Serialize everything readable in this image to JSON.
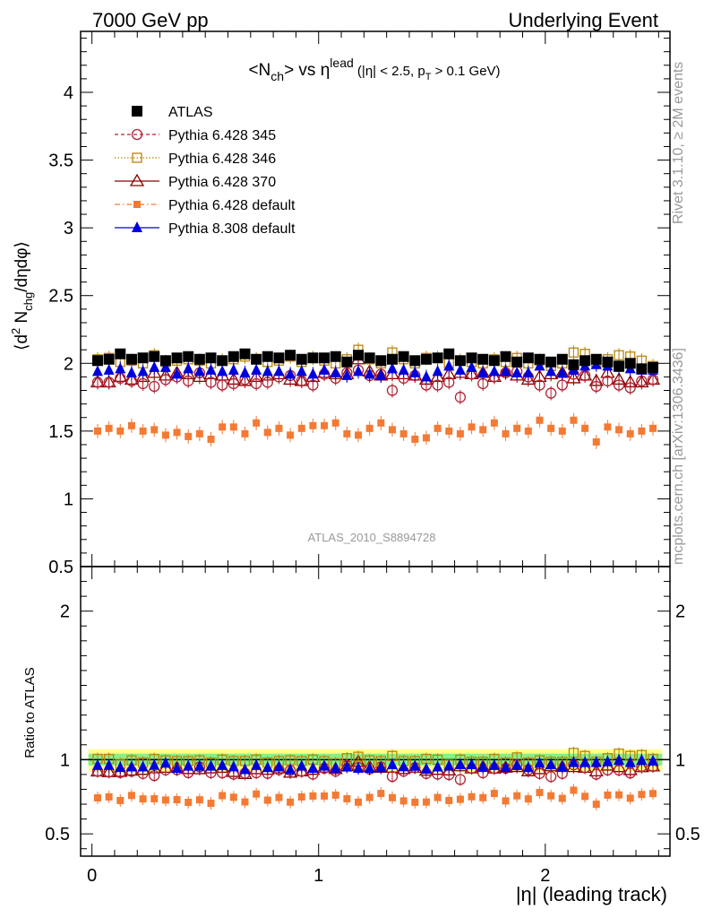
{
  "header": {
    "left": "7000 GeV pp",
    "right": "Underlying Event"
  },
  "side_labels": {
    "rivet": "Rivet 3.1.10, ≥ 2M events",
    "mcplots": "mcplots.cern.ch [arXiv:1306.3436]"
  },
  "chart_data": [
    {
      "type": "scatter",
      "title": "<N_ch> vs η^lead (|η| < 2.5, p_T > 0.1 GeV)",
      "ylabel": "⟨d² N_chg/dηdφ⟩",
      "xlabel": "|η| (leading track)",
      "analysis_label": "ATLAS_2010_S8894728",
      "xlim": [
        -0.05,
        2.55
      ],
      "ylim": [
        0.5,
        4.45
      ],
      "yticks": [
        0.5,
        1,
        1.5,
        2,
        2.5,
        3,
        3.5,
        4
      ],
      "ytick_labels": [
        "0.5",
        "1",
        "1.5",
        "2",
        "2.5",
        "3",
        "3.5",
        "4"
      ],
      "xticks": [
        0,
        1,
        2
      ],
      "xtick_labels": [
        "0",
        "1",
        "2"
      ],
      "legend_position": "top-left",
      "x": [
        0.025,
        0.075,
        0.125,
        0.175,
        0.225,
        0.275,
        0.325,
        0.375,
        0.425,
        0.475,
        0.525,
        0.575,
        0.625,
        0.675,
        0.725,
        0.775,
        0.825,
        0.875,
        0.925,
        0.975,
        1.025,
        1.075,
        1.125,
        1.175,
        1.225,
        1.275,
        1.325,
        1.375,
        1.425,
        1.475,
        1.525,
        1.575,
        1.625,
        1.675,
        1.725,
        1.775,
        1.825,
        1.875,
        1.925,
        1.975,
        2.025,
        2.075,
        2.125,
        2.175,
        2.225,
        2.275,
        2.325,
        2.375,
        2.425,
        2.475
      ],
      "series": [
        {
          "name": "ATLAS",
          "color": "#000000",
          "marker": "square-filled",
          "values": [
            2.02,
            2.03,
            2.07,
            2.03,
            2.04,
            2.05,
            2.02,
            2.04,
            2.05,
            2.03,
            2.04,
            2.02,
            2.05,
            2.07,
            2.03,
            2.05,
            2.04,
            2.06,
            2.03,
            2.04,
            2.04,
            2.05,
            2.01,
            2.06,
            2.04,
            2.02,
            2.03,
            2.05,
            2.02,
            2.03,
            2.04,
            2.07,
            2.02,
            2.04,
            2.03,
            2.02,
            2.05,
            2.01,
            2.04,
            2.03,
            2.01,
            2.03,
            1.99,
            2.02,
            2.03,
            2.01,
            1.98,
            2.0,
            1.96,
            1.97
          ]
        },
        {
          "name": "Pythia 6.428 345",
          "color": "#b22234",
          "marker": "circle-open",
          "line": "dashed",
          "values": [
            1.86,
            1.86,
            1.89,
            1.87,
            1.85,
            1.83,
            1.88,
            1.9,
            1.87,
            1.93,
            1.86,
            1.84,
            1.85,
            1.88,
            1.85,
            1.86,
            1.9,
            1.91,
            1.87,
            1.84,
            1.92,
            1.89,
            1.93,
            1.95,
            1.91,
            1.92,
            1.8,
            1.89,
            1.91,
            1.84,
            1.84,
            1.86,
            1.75,
            1.92,
            1.85,
            1.9,
            1.93,
            1.94,
            1.9,
            1.84,
            1.78,
            1.84,
            1.92,
            1.91,
            1.83,
            1.87,
            1.84,
            1.82,
            1.87,
            1.88
          ]
        },
        {
          "name": "Pythia 6.428 346",
          "color": "#b8860b",
          "marker": "square-open",
          "line": "dotted",
          "values": [
            2.03,
            2.04,
            2.01,
            2.02,
            2.0,
            2.06,
            2.01,
            2.02,
            2.03,
            2.02,
            2.0,
            2.02,
            2.03,
            2.05,
            2.03,
            2.01,
            2.02,
            2.05,
            2.01,
            2.04,
            2.02,
            2.0,
            2.03,
            2.1,
            2.03,
            2.0,
            2.08,
            2.03,
            2.0,
            2.04,
            2.04,
            2.0,
            2.02,
            2.01,
            2.0,
            2.03,
            2.01,
            2.04,
            2.0,
            2.02,
            1.98,
            2.0,
            2.08,
            2.07,
            2.0,
            2.03,
            2.06,
            2.05,
            2.02,
            1.98
          ]
        },
        {
          "name": "Pythia 6.428 370",
          "color": "#8b0000",
          "marker": "triangle-open",
          "line": "solid",
          "values": [
            1.86,
            1.86,
            1.9,
            1.88,
            1.9,
            1.93,
            1.91,
            1.93,
            1.92,
            1.9,
            1.92,
            1.91,
            1.88,
            1.87,
            1.9,
            1.91,
            1.92,
            1.88,
            1.87,
            1.9,
            1.93,
            1.92,
            1.92,
            2.03,
            1.94,
            1.91,
            1.92,
            1.92,
            1.91,
            1.88,
            1.9,
            1.92,
            1.93,
            1.92,
            1.93,
            1.9,
            1.94,
            1.91,
            1.88,
            1.9,
            1.92,
            1.93,
            1.89,
            1.91,
            1.87,
            1.93,
            1.88,
            1.86,
            1.86,
            1.88
          ]
        },
        {
          "name": "Pythia 6.428 default",
          "color": "#f47a33",
          "marker": "square-filled-small",
          "line": "dashdot",
          "values": [
            1.5,
            1.52,
            1.5,
            1.54,
            1.5,
            1.51,
            1.47,
            1.49,
            1.46,
            1.48,
            1.44,
            1.53,
            1.53,
            1.48,
            1.56,
            1.49,
            1.52,
            1.47,
            1.52,
            1.54,
            1.54,
            1.56,
            1.48,
            1.47,
            1.52,
            1.56,
            1.51,
            1.48,
            1.44,
            1.45,
            1.52,
            1.5,
            1.48,
            1.53,
            1.51,
            1.56,
            1.48,
            1.52,
            1.5,
            1.58,
            1.52,
            1.5,
            1.58,
            1.52,
            1.42,
            1.53,
            1.51,
            1.48,
            1.5,
            1.52
          ]
        },
        {
          "name": "Pythia 8.308 default",
          "color": "#0000dd",
          "marker": "triangle-filled",
          "line": "solid",
          "values": [
            1.94,
            1.95,
            1.96,
            1.93,
            1.94,
            1.97,
            1.97,
            1.92,
            1.96,
            1.94,
            1.95,
            1.94,
            1.95,
            1.93,
            1.95,
            1.94,
            1.94,
            1.92,
            1.94,
            1.92,
            1.95,
            1.93,
            1.91,
            1.94,
            1.92,
            1.91,
            1.96,
            1.95,
            1.93,
            1.9,
            1.94,
            1.98,
            1.95,
            1.97,
            1.93,
            1.94,
            1.94,
            1.93,
            1.93,
            1.98,
            1.94,
            1.93,
            1.95,
            1.98,
            1.99,
            1.98,
            1.97,
            1.96,
            1.95,
            1.95
          ]
        }
      ]
    },
    {
      "type": "scatter",
      "ylabel": "Ratio to ATLAS",
      "xlabel": "|η| (leading track)",
      "xlim": [
        -0.05,
        2.55
      ],
      "ylim": [
        0.35,
        2.3
      ],
      "yticks": [
        0.5,
        1,
        2
      ],
      "ytick_labels": [
        "0.5",
        "1",
        "2"
      ],
      "xticks": [
        0,
        1,
        2
      ],
      "xtick_labels": [
        "0",
        "1",
        "2"
      ],
      "bands": [
        {
          "name": "stat ⊕ syst",
          "color": "#ffff88",
          "lo": 0.92,
          "hi": 1.07
        },
        {
          "name": "stat",
          "color": "#88ee88",
          "lo": 0.96,
          "hi": 1.04
        }
      ]
    }
  ]
}
